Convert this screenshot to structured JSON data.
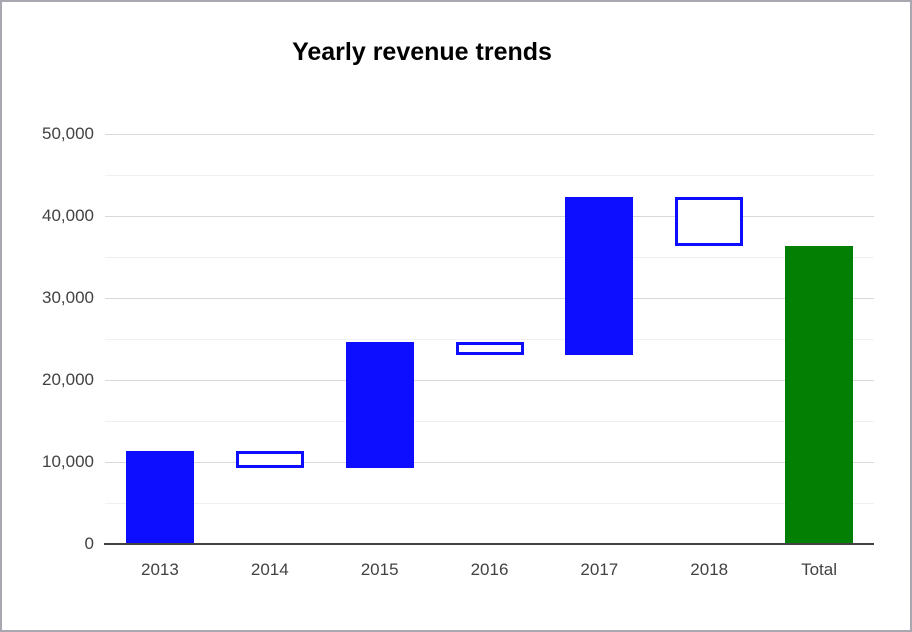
{
  "window": {
    "background": "#ffffff",
    "border_color": "#a8a8b0"
  },
  "chart_data": {
    "type": "bar",
    "subtype": "waterfall",
    "title": "Yearly revenue trends",
    "title_color": "#000000",
    "categories": [
      "2013",
      "2014",
      "2015",
      "2016",
      "2017",
      "2018",
      "Total"
    ],
    "bars": [
      {
        "label": "2013",
        "start": 0,
        "end": 11400,
        "delta": 11400,
        "kind": "increase"
      },
      {
        "label": "2014",
        "start": 11400,
        "end": 9300,
        "delta": -2100,
        "kind": "decrease"
      },
      {
        "label": "2015",
        "start": 9300,
        "end": 24600,
        "delta": 15300,
        "kind": "increase"
      },
      {
        "label": "2016",
        "start": 24600,
        "end": 23000,
        "delta": -1600,
        "kind": "decrease"
      },
      {
        "label": "2017",
        "start": 23000,
        "end": 42300,
        "delta": 19300,
        "kind": "increase"
      },
      {
        "label": "2018",
        "start": 42300,
        "end": 36400,
        "delta": -5900,
        "kind": "decrease"
      },
      {
        "label": "Total",
        "start": 0,
        "end": 36400,
        "delta": 36400,
        "kind": "total"
      }
    ],
    "xlabel": "",
    "ylabel": "",
    "ylim": [
      0,
      50000
    ],
    "y_major_step": 10000,
    "y_minor_step": 5000,
    "y_tick_labels": [
      "0",
      "10,000",
      "20,000",
      "30,000",
      "40,000",
      "50,000"
    ],
    "legend_position": "none",
    "grid": {
      "major_color": "#d9d9d9",
      "minor_color": "#f0f0f0",
      "baseline_color": "#424242"
    },
    "colors": {
      "increase_fill": "#0d0dff",
      "decrease_fill": "#ffffff",
      "decrease_border": "#0d0dff",
      "total_fill": "#038003",
      "axis_text": "#424242"
    }
  }
}
